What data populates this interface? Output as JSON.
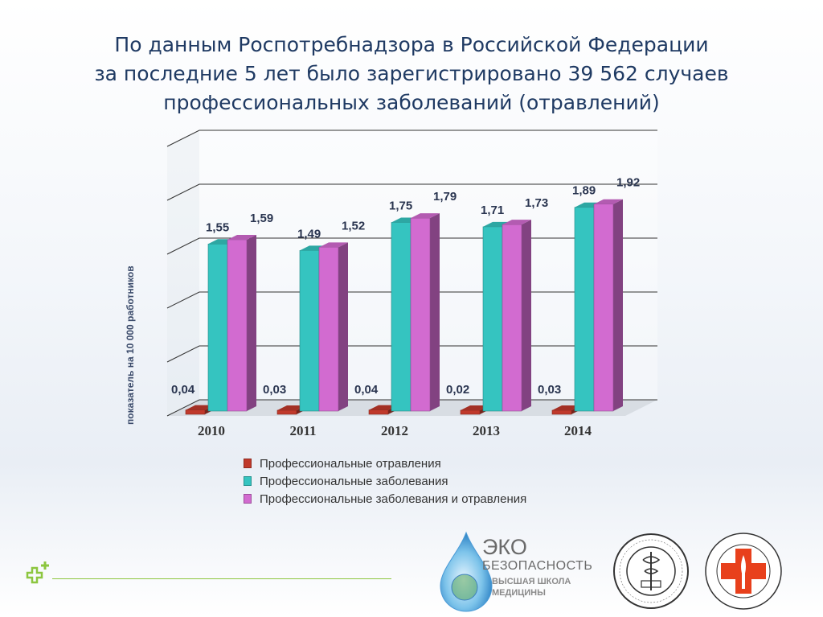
{
  "title": {
    "line1": "По данным Роспотребнадзора в Российской Федерации",
    "line2": "за последние 5 лет было зарегистрировано 39 562 случаев",
    "line3": "профессиональных заболеваний (отравлений)"
  },
  "chart_data": {
    "type": "bar",
    "categories": [
      "2010",
      "2011",
      "2012",
      "2013",
      "2014"
    ],
    "ylabel": "показатель на 10 000 работников",
    "ylim": [
      0,
      2.5
    ],
    "grid": true,
    "legend_position": "bottom",
    "series": [
      {
        "name": "Профессиональные отравления",
        "values": [
          0.04,
          0.03,
          0.04,
          0.02,
          0.03
        ],
        "labels": [
          "0,04",
          "0,03",
          "0,04",
          "0,02",
          "0,03"
        ],
        "color": "#c0392b"
      },
      {
        "name": "Профессиональные заболевания",
        "values": [
          1.55,
          1.49,
          1.75,
          1.71,
          1.89
        ],
        "labels": [
          "1,55",
          "1,49",
          "1,75",
          "1,71",
          "1,89"
        ],
        "color": "#35c4c0"
      },
      {
        "name": "Профессиональные заболевания и отравления",
        "values": [
          1.59,
          1.52,
          1.79,
          1.73,
          1.92
        ],
        "labels": [
          "1,59",
          "1,52",
          "1,79",
          "1,73",
          "1,92"
        ],
        "color": "#d26bd0"
      }
    ]
  },
  "logos": {
    "eko_line1": "ЭКО",
    "eko_line2": "БЕЗОПАСНОСТЬ",
    "eko_line3": "ВЫСШАЯ ШКОЛА",
    "eko_line4": "МЕДИЦИНЫ"
  },
  "colors": {
    "title": "#1f3a63",
    "accent_green": "#8cc63f",
    "cross_red": "#e8401c"
  }
}
